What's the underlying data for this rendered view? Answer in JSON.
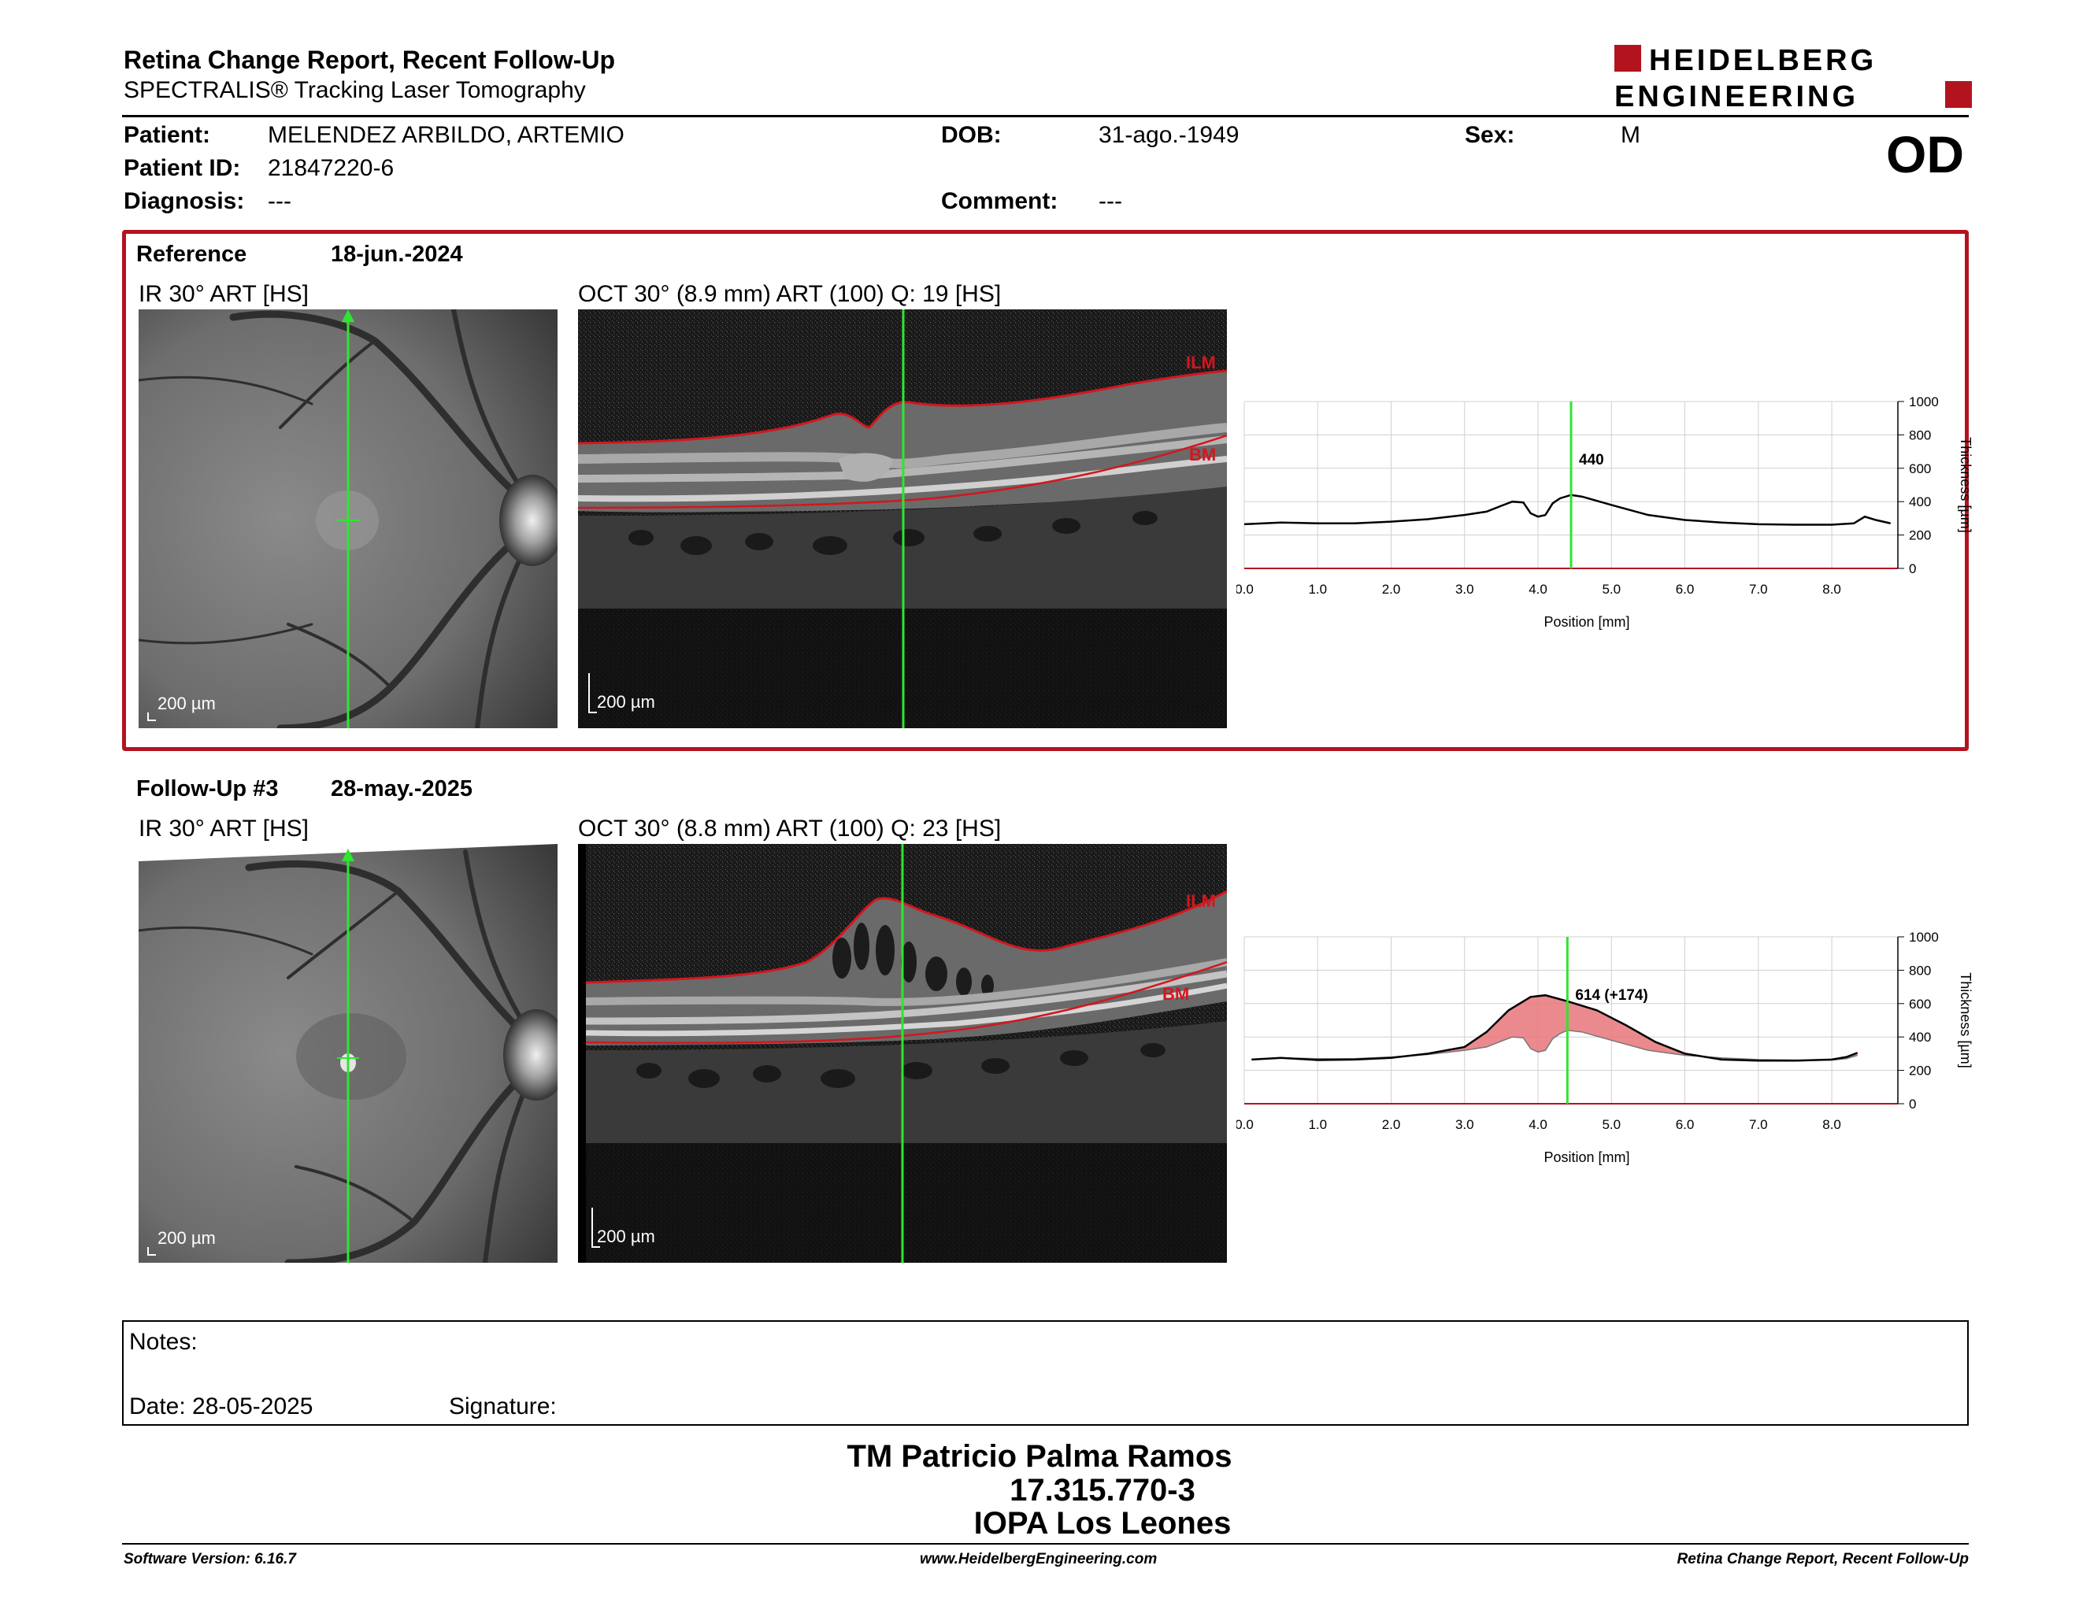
{
  "header": {
    "title": "Retina Change Report, Recent Follow-Up",
    "subtitle": "SPECTRALIS® Tracking Laser Tomography",
    "logo_line1": "HEIDELBERG",
    "logo_line2": "ENGINEERING",
    "eye": "OD"
  },
  "patient": {
    "name_label": "Patient:",
    "name": "MELENDEZ ARBILDO, ARTEMIO",
    "id_label": "Patient ID:",
    "id": "21847220-6",
    "diagnosis_label": "Diagnosis:",
    "diagnosis": "---",
    "dob_label": "DOB:",
    "dob": "31-ago.-1949",
    "comment_label": "Comment:",
    "comment": "---",
    "sex_label": "Sex:",
    "sex": "M"
  },
  "reference": {
    "label": "Reference",
    "date": "18-jun.-2024",
    "ir_label": "IR 30° ART [HS]",
    "oct_label": "OCT 30° (8.9 mm) ART (100) Q: 19 [HS]",
    "scale": "200 µm",
    "ilm": "ILM",
    "bm": "BM"
  },
  "followup": {
    "label": "Follow-Up #3",
    "date": "28-may.-2025",
    "ir_label": "IR 30° ART [HS]",
    "oct_label": "OCT 30° (8.8 mm) ART (100) Q: 23 [HS]",
    "scale": "200 µm",
    "ilm": "ILM",
    "bm": "BM"
  },
  "colors": {
    "accent_red": "#b3131f",
    "cursor_green": "#2ee62e",
    "change_fill": "#e8767a"
  },
  "chart_data": [
    {
      "type": "line",
      "ylabel": "Thickness [µm]",
      "xlabel": "Position [mm]",
      "xlim": [
        0,
        8.9
      ],
      "ylim": [
        0,
        1000
      ],
      "xticks": [
        "0.0",
        "1.0",
        "2.0",
        "3.0",
        "4.0",
        "5.0",
        "6.0",
        "7.0",
        "8.0"
      ],
      "yticks": [
        "0",
        "200",
        "400",
        "600",
        "800",
        "1000"
      ],
      "cursor_x": 4.45,
      "cursor_label": "440",
      "series": [
        {
          "x": [
            0.0,
            0.5,
            1.0,
            1.5,
            2.0,
            2.5,
            3.0,
            3.3,
            3.5,
            3.65,
            3.8,
            3.9,
            4.0,
            4.1,
            4.2,
            4.3,
            4.45,
            4.6,
            5.0,
            5.5,
            6.0,
            6.5,
            7.0,
            7.5,
            8.0,
            8.3,
            8.45,
            8.6,
            8.8
          ],
          "y": [
            265,
            275,
            270,
            270,
            280,
            295,
            320,
            340,
            375,
            400,
            395,
            330,
            310,
            320,
            390,
            420,
            440,
            430,
            380,
            320,
            290,
            275,
            265,
            262,
            262,
            270,
            310,
            290,
            270
          ]
        }
      ]
    },
    {
      "type": "area",
      "ylabel": "Thickness [µm]",
      "xlabel": "Position [mm]",
      "xlim": [
        0,
        8.9
      ],
      "ylim": [
        0,
        1000
      ],
      "xticks": [
        "0.0",
        "1.0",
        "2.0",
        "3.0",
        "4.0",
        "5.0",
        "6.0",
        "7.0",
        "8.0"
      ],
      "yticks": [
        "0",
        "200",
        "400",
        "600",
        "800",
        "1000"
      ],
      "cursor_x": 4.4,
      "cursor_label": "614 (+174)",
      "series": [
        {
          "x": [
            0.1,
            0.5,
            1.0,
            1.5,
            2.0,
            2.5,
            3.0,
            3.3,
            3.6,
            3.9,
            4.1,
            4.4,
            4.8,
            5.2,
            5.6,
            6.0,
            6.5,
            7.0,
            7.5,
            8.0,
            8.2,
            8.35
          ],
          "y": [
            265,
            275,
            262,
            265,
            275,
            300,
            340,
            430,
            560,
            640,
            650,
            614,
            560,
            470,
            370,
            300,
            265,
            258,
            258,
            265,
            280,
            305
          ]
        },
        {
          "x": [
            0.1,
            0.5,
            1.0,
            1.5,
            2.0,
            2.5,
            3.0,
            3.3,
            3.5,
            3.65,
            3.8,
            3.9,
            4.0,
            4.1,
            4.2,
            4.3,
            4.4,
            4.6,
            5.0,
            5.5,
            6.0,
            6.5,
            7.0,
            7.5,
            8.0,
            8.2,
            8.35
          ],
          "y": [
            265,
            275,
            270,
            270,
            280,
            295,
            320,
            340,
            375,
            400,
            395,
            330,
            310,
            320,
            390,
            420,
            440,
            430,
            380,
            320,
            290,
            275,
            265,
            262,
            262,
            270,
            290
          ]
        }
      ]
    }
  ],
  "notes": {
    "label": "Notes:",
    "date_label": "Date: 28-05-2025",
    "signature_label": "Signature:"
  },
  "signature_block": {
    "name": "TM Patricio Palma Ramos",
    "rut": "17.315.770-3",
    "org": "IOPA Los Leones"
  },
  "footer": {
    "software": "Software Version: 6.16.7",
    "website": "www.HeidelbergEngineering.com",
    "report": "Retina Change Report, Recent Follow-Up"
  }
}
